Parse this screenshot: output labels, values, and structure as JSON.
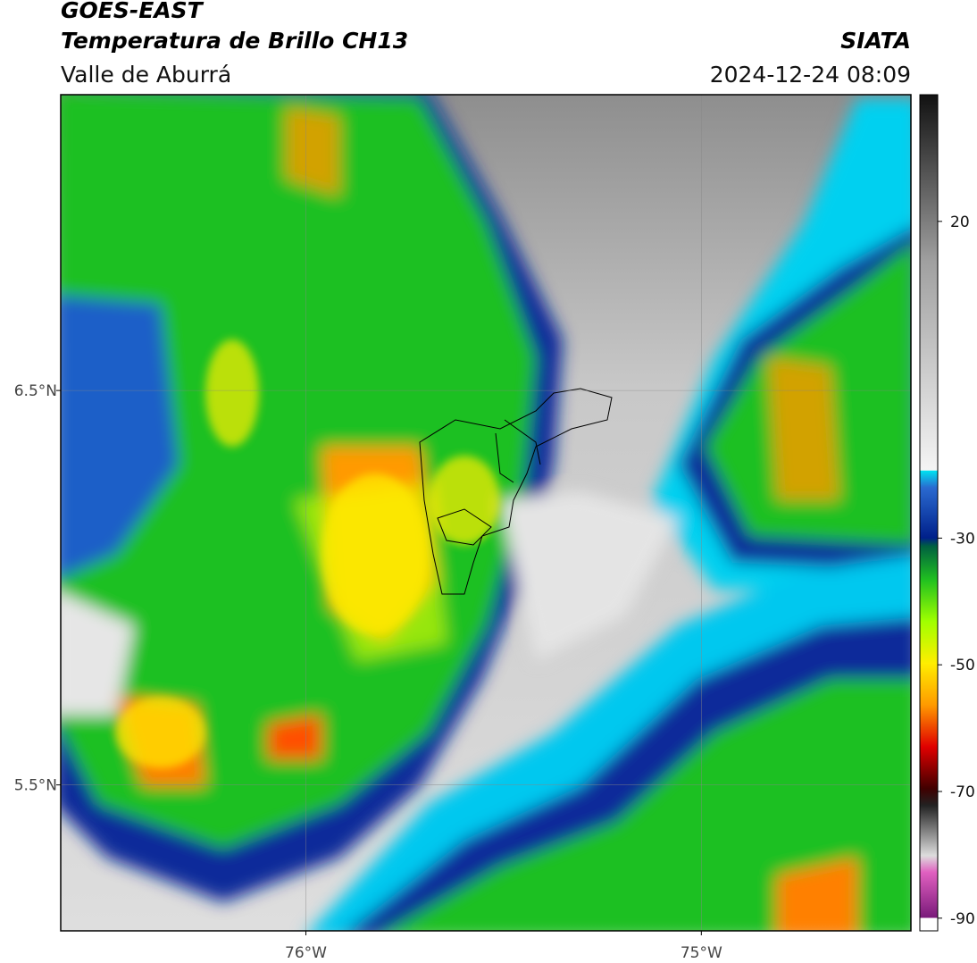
{
  "header": {
    "title": "GOES-EAST",
    "subtitle": "Temperatura de Brillo CH13",
    "region": "Valle de Aburrá",
    "source": "SIATA",
    "timestamp": "2024-12-24 08:09"
  },
  "map": {
    "xlim": [
      -76.62,
      -74.47
    ],
    "ylim": [
      5.13,
      7.25
    ],
    "xticks": [
      {
        "value": -76,
        "label": "76°W"
      },
      {
        "value": -75,
        "label": "75°W"
      }
    ],
    "yticks": [
      {
        "value": 6.5,
        "label": "6.5°N"
      },
      {
        "value": 5.5,
        "label": "5.5°N"
      }
    ],
    "grid": true
  },
  "colorbar": {
    "lim": [
      -92,
      40
    ],
    "ticks": [
      20,
      -30,
      -50,
      -70,
      -90
    ]
  }
}
